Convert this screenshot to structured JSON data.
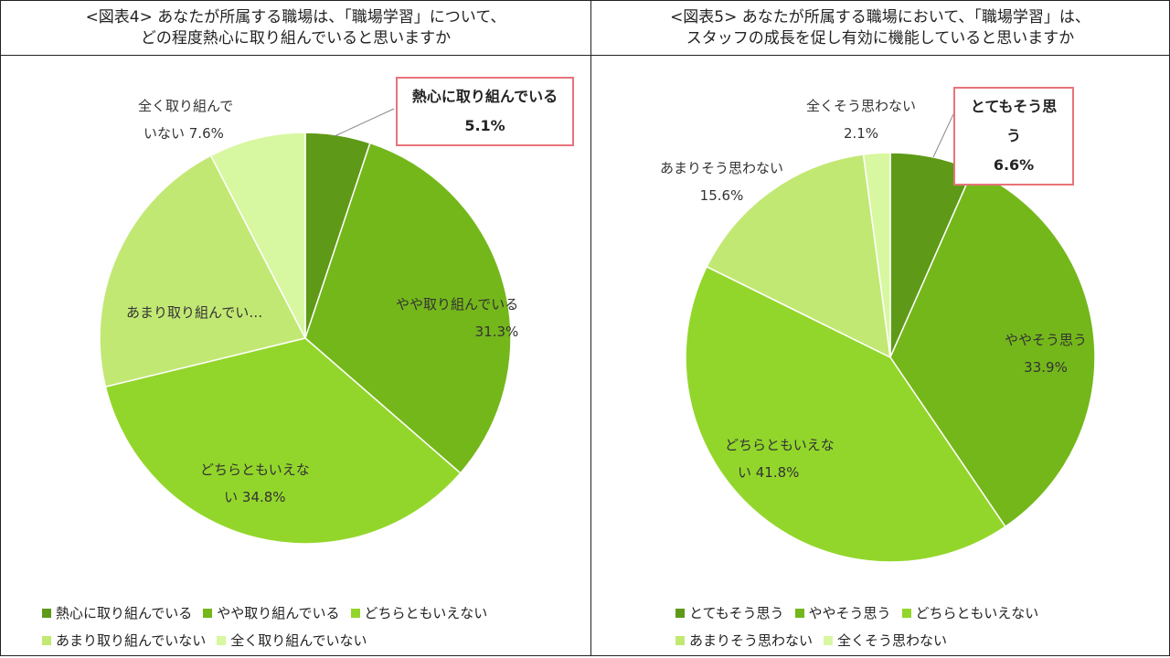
{
  "chart_data": [
    {
      "type": "pie",
      "title_lines": [
        "<図表4> あなたが所属する職場は、「職場学習」について、",
        "どの程度熱心に取り組んでいると思いますか"
      ],
      "categories": [
        "熱心に取り組んでいる",
        "やや取り組んでいる",
        "どちらともいえない",
        "あまり取り組んでいない",
        "全く取り組んでいない"
      ],
      "values": [
        5.1,
        31.3,
        34.8,
        21.2,
        7.6
      ],
      "colors": [
        "#5e9a17",
        "#74b71b",
        "#93d62b",
        "#c2e874",
        "#d8f7a1"
      ],
      "data_labels": [
        {
          "lines": [
            "熱心に取り組んでいる",
            "5.1%"
          ]
        },
        {
          "lines": [
            "やや取り組んでいる",
            "31.3%"
          ]
        },
        {
          "lines": [
            "どちらともいえな",
            "い 34.8%"
          ]
        },
        {
          "lines": [
            "あまり取り組んでい…"
          ]
        },
        {
          "lines": [
            "全く取り組んで",
            "いない 7.6%"
          ]
        }
      ],
      "legend_position": "bottom"
    },
    {
      "type": "pie",
      "title_lines": [
        "<図表5> あなたが所属する職場において、「職場学習」は、",
        "スタッフの成長を促し有効に機能していると思いますか"
      ],
      "categories": [
        "とてもそう思う",
        "ややそう思う",
        "どちらともいえない",
        "あまりそう思わない",
        "全くそう思わない"
      ],
      "values": [
        6.6,
        33.9,
        41.8,
        15.6,
        2.1
      ],
      "colors": [
        "#5e9a17",
        "#74b71b",
        "#93d62b",
        "#c2e874",
        "#d8f7a1"
      ],
      "data_labels": [
        {
          "lines": [
            "とてもそう思う",
            "6.6%"
          ]
        },
        {
          "lines": [
            "ややそう思う",
            "33.9%"
          ]
        },
        {
          "lines": [
            "どちらともいえな",
            "い 41.8%"
          ]
        },
        {
          "lines": [
            "あまりそう思わない",
            "15.6%"
          ]
        },
        {
          "lines": [
            "全くそう思わない",
            "2.1%"
          ]
        }
      ],
      "legend_position": "bottom"
    }
  ]
}
